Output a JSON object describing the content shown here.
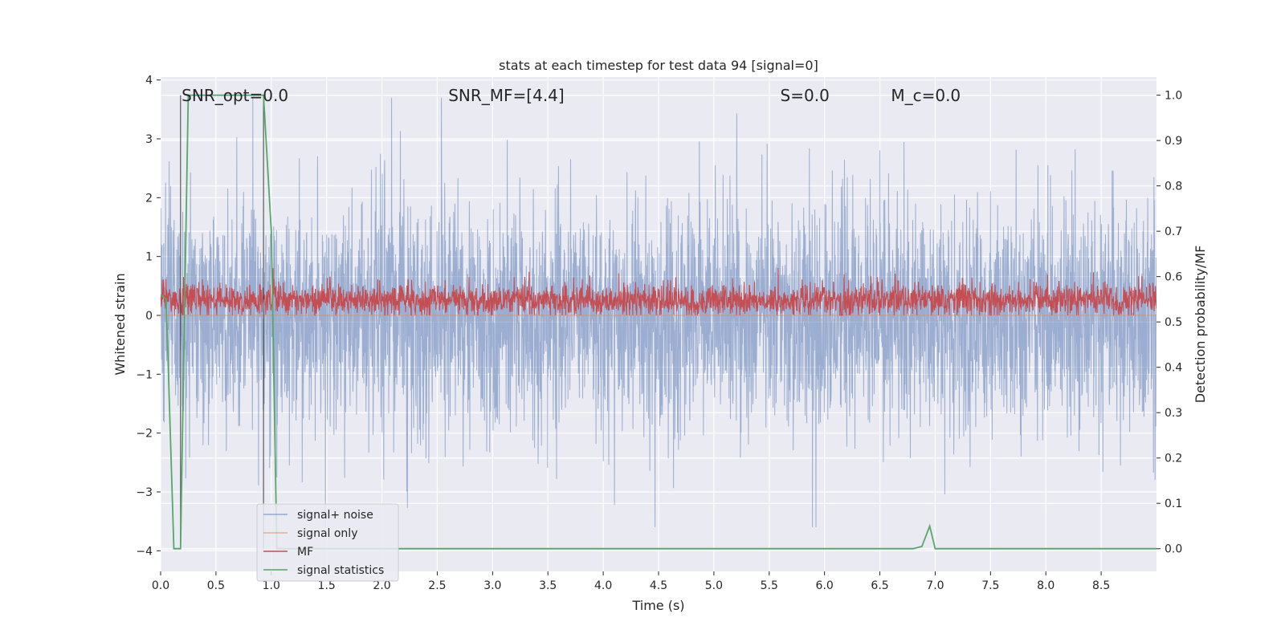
{
  "chart_data": {
    "type": "line",
    "title": "stats at each timestep for test data 94 [signal=0]",
    "xlabel": "Time (s)",
    "ylabel_left": "Whitened strain",
    "ylabel_right": "Detection probability/MF",
    "xlim": [
      0.0,
      9.0
    ],
    "ylim_left": [
      -4.35,
      4.05
    ],
    "ylim_right": [
      -0.05,
      1.04
    ],
    "x_ticks": [
      "0.0",
      "0.5",
      "1.0",
      "1.5",
      "2.0",
      "2.5",
      "3.0",
      "3.5",
      "4.0",
      "4.5",
      "5.0",
      "5.5",
      "6.0",
      "6.5",
      "7.0",
      "7.5",
      "8.0",
      "8.5"
    ],
    "y_ticks_left": [
      "−4",
      "−3",
      "−2",
      "−1",
      "0",
      "1",
      "2",
      "3",
      "4"
    ],
    "y_ticks_right": [
      "0.0",
      "0.1",
      "0.2",
      "0.3",
      "0.4",
      "0.5",
      "0.6",
      "0.7",
      "0.8",
      "0.9",
      "1.0"
    ],
    "grid": true,
    "legend_position": "lower-left",
    "annotations": [
      {
        "text": "SNR_opt=0.0",
        "x": 0.19,
        "y": 3.75
      },
      {
        "text": "SNR_MF=[4.4]",
        "x": 2.6,
        "y": 3.75
      },
      {
        "text": "S=0.0",
        "x": 5.6,
        "y": 3.75
      },
      {
        "text": "M_c=0.0",
        "x": 6.6,
        "y": 3.75
      }
    ],
    "vertical_lines_x": [
      0.18,
      0.93
    ],
    "series": [
      {
        "name": "signal+ noise",
        "axis": "left",
        "color": "#4c72b0",
        "description_values": "whitened strain noise roughly within -3.5..3.7"
      },
      {
        "name": "signal only",
        "axis": "left",
        "color": "#dd8452",
        "x": [
          0.0,
          9.0
        ],
        "y": [
          0.0,
          0.0
        ]
      },
      {
        "name": "MF",
        "axis": "right",
        "color": "#c44e52",
        "description_values": "matched filter output roughly within 0.52..0.62"
      },
      {
        "name": "signal statistics",
        "axis": "right",
        "color": "#55a868",
        "x": [
          0.0,
          0.05,
          0.12,
          0.18,
          0.25,
          0.3,
          0.9,
          0.93,
          1.0,
          1.05,
          1.2,
          6.8,
          6.88,
          6.95,
          7.0,
          9.0
        ],
        "y": [
          0.56,
          0.55,
          0.0,
          0.0,
          1.0,
          1.0,
          1.0,
          1.0,
          0.7,
          0.0,
          0.0,
          0.0,
          0.005,
          0.05,
          0.0,
          0.0
        ]
      }
    ]
  }
}
